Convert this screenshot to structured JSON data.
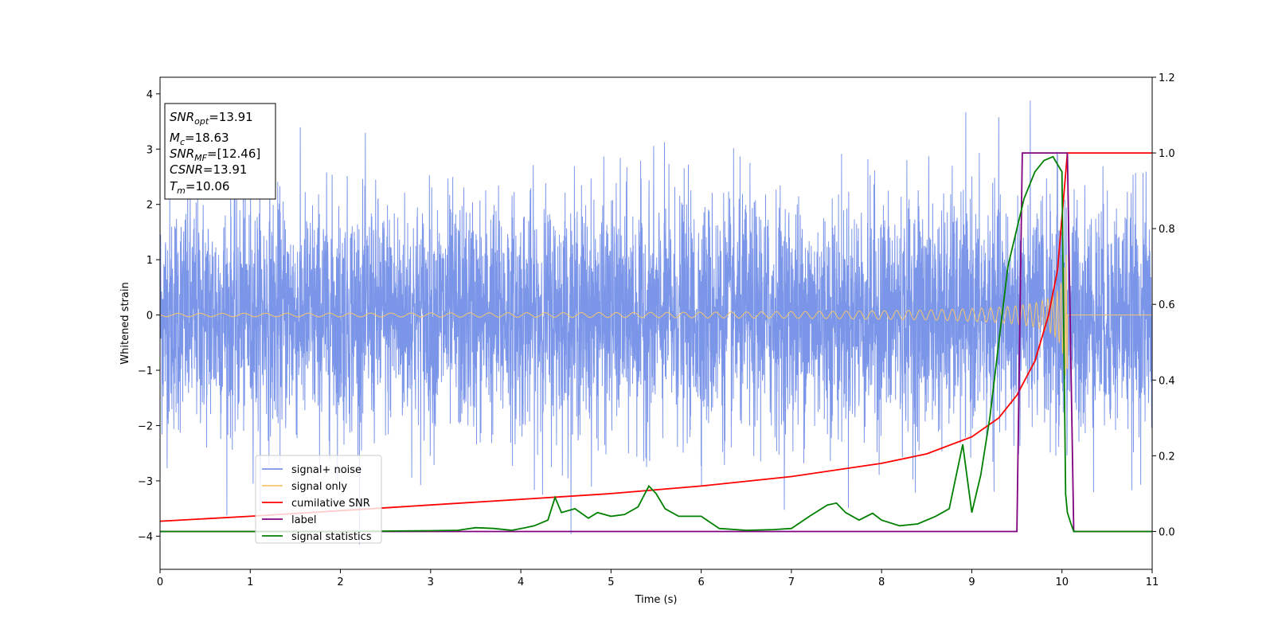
{
  "chart_data": {
    "type": "line",
    "xlabel": "Time (s)",
    "ylabel_left": "Whitened strain",
    "ylabel_right": "",
    "xlim": [
      0,
      11
    ],
    "ylim_left": [
      -4.6,
      4.3
    ],
    "ylim_right": [
      -0.1,
      1.2
    ],
    "x_ticks": [
      "0",
      "1",
      "2",
      "3",
      "4",
      "5",
      "6",
      "7",
      "8",
      "9",
      "10",
      "11"
    ],
    "y_ticks_left": [
      "4",
      "3",
      "2",
      "1",
      "0",
      "−1",
      "−2",
      "−3",
      "−4"
    ],
    "y_ticks_right": [
      "1.2",
      "1.0",
      "0.8",
      "0.6",
      "0.4",
      "0.2",
      "0.0"
    ],
    "grid": false,
    "legend_placement": "lower-left",
    "info_box": {
      "snr_opt_main": "SNR",
      "snr_opt_sub": "opt",
      "snr_opt_value": "=13.91",
      "mc_main": "M",
      "mc_sub": "c",
      "mc_value": "=18.63",
      "snr_mf_main": "SNR",
      "snr_mf_sub": "MF",
      "snr_mf_value": "=[12.46]",
      "csnr_main": "CSNR",
      "csnr_value": "=13.91",
      "tm_main": "T",
      "tm_sub": "m",
      "tm_value": "=10.06"
    },
    "series": [
      {
        "name": "signal+ noise",
        "axis": "left",
        "color": "#7b95e8",
        "kind": "noise",
        "amplitude": 1.45,
        "peak_min": -4.15,
        "peak_max": 3.88
      },
      {
        "name": "signal only",
        "axis": "left",
        "color": "#f5c66e",
        "kind": "chirp",
        "t_merger": 10.06,
        "end_amplitude": 1.1
      },
      {
        "name": "cumilative SNR",
        "axis": "right",
        "color": "#ff0000",
        "x": [
          0,
          1,
          2,
          3,
          4,
          5,
          6,
          7,
          8,
          8.5,
          9,
          9.3,
          9.5,
          9.7,
          9.85,
          9.95,
          10.06,
          10.07,
          11
        ],
        "y": [
          0.027,
          0.04,
          0.055,
          0.07,
          0.085,
          0.1,
          0.12,
          0.145,
          0.18,
          0.205,
          0.25,
          0.3,
          0.36,
          0.45,
          0.57,
          0.69,
          1.0,
          1.0,
          1.0
        ]
      },
      {
        "name": "label",
        "axis": "right",
        "color": "#800080",
        "x": [
          0,
          9.5,
          9.56,
          10.06,
          10.13,
          11
        ],
        "y": [
          0.0,
          0.0,
          1.0,
          1.0,
          0.0,
          0.0
        ]
      },
      {
        "name": "signal statistics",
        "axis": "right",
        "color": "#008000",
        "x": [
          0,
          2,
          3,
          3.3,
          3.5,
          3.7,
          3.9,
          4.05,
          4.15,
          4.3,
          4.38,
          4.45,
          4.6,
          4.75,
          4.85,
          5.0,
          5.15,
          5.3,
          5.42,
          5.5,
          5.6,
          5.75,
          6.0,
          6.2,
          6.5,
          6.8,
          7.0,
          7.2,
          7.4,
          7.5,
          7.6,
          7.75,
          7.9,
          8.0,
          8.2,
          8.4,
          8.6,
          8.75,
          8.9,
          9.0,
          9.1,
          9.2,
          9.3,
          9.4,
          9.5,
          9.58,
          9.7,
          9.8,
          9.9,
          10.0,
          10.04,
          10.06,
          10.1,
          10.13,
          11
        ],
        "y": [
          0.0,
          0.0,
          0.002,
          0.003,
          0.01,
          0.008,
          0.003,
          0.01,
          0.015,
          0.03,
          0.09,
          0.05,
          0.06,
          0.035,
          0.05,
          0.04,
          0.045,
          0.065,
          0.12,
          0.1,
          0.06,
          0.04,
          0.04,
          0.008,
          0.003,
          0.005,
          0.008,
          0.04,
          0.07,
          0.075,
          0.05,
          0.03,
          0.048,
          0.03,
          0.015,
          0.02,
          0.04,
          0.06,
          0.23,
          0.05,
          0.15,
          0.3,
          0.5,
          0.7,
          0.8,
          0.88,
          0.95,
          0.98,
          0.99,
          0.95,
          0.1,
          0.05,
          0.02,
          0.0,
          0.0
        ]
      }
    ]
  }
}
